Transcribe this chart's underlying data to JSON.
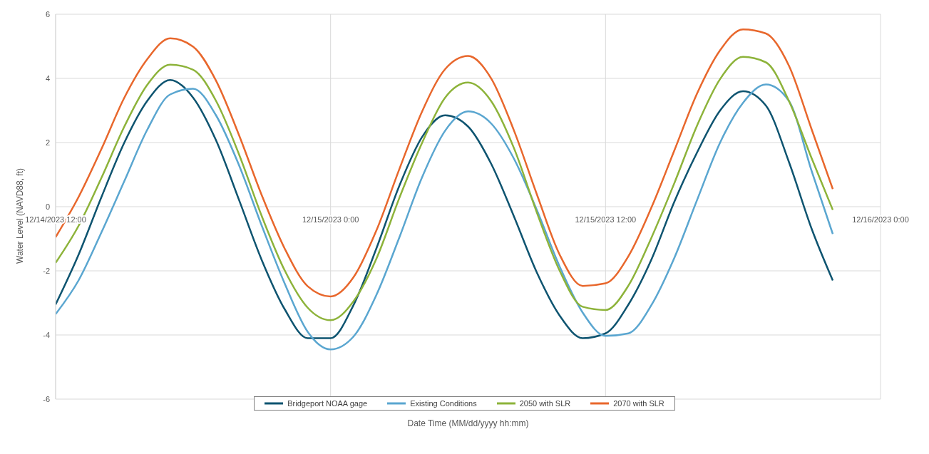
{
  "chart_data": {
    "type": "line",
    "x": [
      "2023-12-14T12:00",
      "2023-12-14T13:00",
      "2023-12-14T14:00",
      "2023-12-14T15:00",
      "2023-12-14T16:00",
      "2023-12-14T17:00",
      "2023-12-14T18:00",
      "2023-12-14T19:00",
      "2023-12-14T20:00",
      "2023-12-14T21:00",
      "2023-12-14T22:00",
      "2023-12-14T23:00",
      "2023-12-15T00:00",
      "2023-12-15T01:00",
      "2023-12-15T02:00",
      "2023-12-15T03:00",
      "2023-12-15T04:00",
      "2023-12-15T05:00",
      "2023-12-15T06:00",
      "2023-12-15T07:00",
      "2023-12-15T08:00",
      "2023-12-15T09:00",
      "2023-12-15T10:00",
      "2023-12-15T11:00",
      "2023-12-15T12:00",
      "2023-12-15T13:00",
      "2023-12-15T14:00",
      "2023-12-15T15:00",
      "2023-12-15T16:00",
      "2023-12-15T17:00",
      "2023-12-15T18:00",
      "2023-12-15T19:00",
      "2023-12-15T20:00",
      "2023-12-15T21:00",
      "2023-12-15T21:55"
    ],
    "series": [
      {
        "name": "Bridgeport NOAA gage",
        "color": "#0e5470",
        "values": [
          -3.05,
          -1.5,
          0.3,
          2.0,
          3.3,
          3.95,
          3.4,
          2.07,
          0.22,
          -1.67,
          -3.2,
          -4.1,
          -4.1,
          -3.07,
          -1.3,
          0.65,
          2.18,
          2.85,
          2.5,
          1.35,
          -0.3,
          -2.05,
          -3.4,
          -4.1,
          -3.95,
          -3.05,
          -1.65,
          0.15,
          1.7,
          3.0,
          3.6,
          3.15,
          1.4,
          -0.7,
          -2.3
        ]
      },
      {
        "name": "Existing Conditions",
        "color": "#5aa6d0",
        "values": [
          -3.35,
          -2.3,
          -0.8,
          0.8,
          2.4,
          3.5,
          3.68,
          2.85,
          1.3,
          -0.6,
          -2.4,
          -3.9,
          -4.45,
          -4.05,
          -2.75,
          -0.96,
          0.93,
          2.37,
          2.97,
          2.6,
          1.5,
          -0.1,
          -1.87,
          -3.3,
          -4.03,
          -3.95,
          -3.07,
          -1.6,
          0.22,
          2.0,
          3.24,
          3.81,
          3.3,
          1.1,
          -0.85
        ]
      },
      {
        "name": "2050 with SLR",
        "color": "#8db33a",
        "values": [
          -1.75,
          -0.6,
          0.9,
          2.5,
          3.8,
          4.43,
          4.27,
          3.3,
          1.64,
          -0.3,
          -1.99,
          -3.15,
          -3.54,
          -2.95,
          -1.62,
          0.27,
          2.0,
          3.4,
          3.87,
          3.3,
          1.83,
          -0.18,
          -2.0,
          -3.12,
          -3.22,
          -2.46,
          -0.97,
          0.73,
          2.54,
          3.98,
          4.67,
          4.5,
          3.3,
          1.5,
          -0.1
        ]
      },
      {
        "name": "2070 with SLR",
        "color": "#e8672c",
        "values": [
          -0.95,
          0.3,
          1.8,
          3.4,
          4.6,
          5.25,
          4.99,
          3.93,
          2.24,
          0.35,
          -1.31,
          -2.48,
          -2.8,
          -2.2,
          -0.74,
          1.17,
          2.98,
          4.29,
          4.7,
          4.01,
          2.38,
          0.39,
          -1.5,
          -2.47,
          -2.39,
          -1.54,
          -0.03,
          1.75,
          3.54,
          4.88,
          5.53,
          5.4,
          4.4,
          2.4,
          0.55
        ]
      }
    ],
    "xlim": [
      "2023-12-14T12:00",
      "2023-12-16T00:00"
    ],
    "xticks": [
      {
        "value": "2023-12-14T12:00",
        "label": "12/14/2023 12:00"
      },
      {
        "value": "2023-12-15T00:00",
        "label": "12/15/2023 0:00"
      },
      {
        "value": "2023-12-15T12:00",
        "label": "12/15/2023 12:00"
      },
      {
        "value": "2023-12-16T00:00",
        "label": "12/16/2023 0:00"
      }
    ],
    "ylim": [
      -6,
      6
    ],
    "yticks": [
      -6,
      -4,
      -2,
      0,
      2,
      4,
      6
    ],
    "xlabel": "Date Time (MM/dd/yyyy hh:mm)",
    "ylabel": "Water Level (NAVD88, ft)",
    "grid": true,
    "legend": "bottom",
    "marker": "none",
    "line_style": "solid"
  }
}
